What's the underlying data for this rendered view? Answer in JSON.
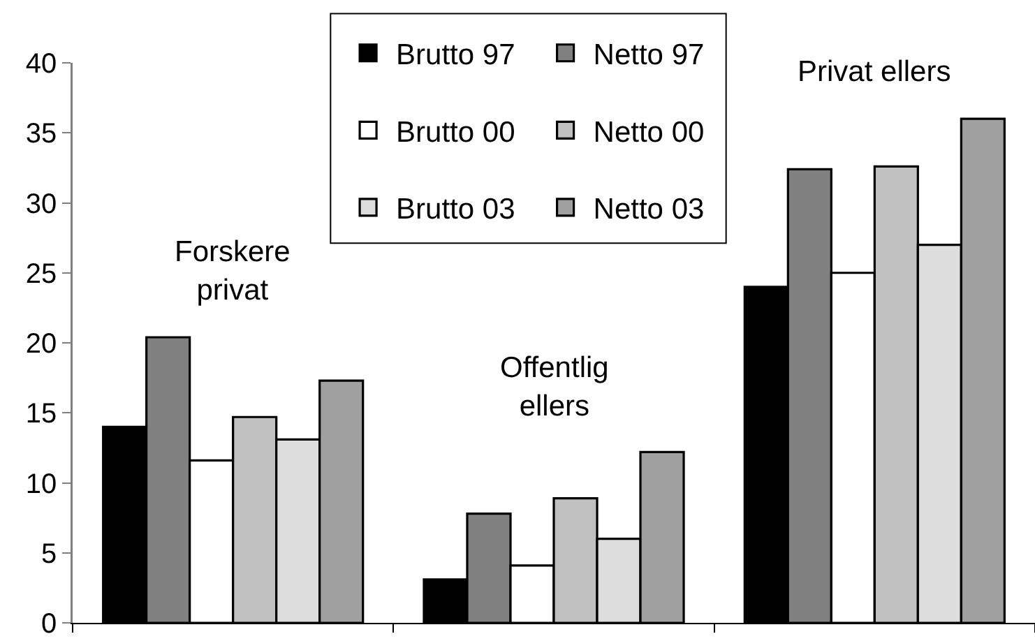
{
  "chart_data": {
    "type": "bar",
    "categories": [
      "Forskere privat",
      "Offentlig ellers",
      "Privat ellers"
    ],
    "series": [
      {
        "name": "Brutto 97",
        "color": "#000000",
        "values": [
          14.0,
          3.1,
          24.0
        ]
      },
      {
        "name": "Netto 97",
        "color": "#808080",
        "values": [
          20.4,
          7.8,
          32.4
        ]
      },
      {
        "name": "Brutto 00",
        "color": "#ffffff",
        "values": [
          11.6,
          4.1,
          25.0
        ]
      },
      {
        "name": "Netto 00",
        "color": "#c0c0c0",
        "values": [
          14.7,
          8.9,
          32.6
        ]
      },
      {
        "name": "Brutto 03",
        "color": "#dddddd",
        "values": [
          13.1,
          6.0,
          27.0
        ]
      },
      {
        "name": "Netto 03",
        "color": "#a0a0a0",
        "values": [
          17.3,
          12.2,
          36.0
        ]
      }
    ],
    "ylim": [
      0,
      40
    ],
    "yticks": [
      0,
      5,
      10,
      15,
      20,
      25,
      30,
      35,
      40
    ],
    "grid": false,
    "legend": "top",
    "tick_labels": "y"
  }
}
